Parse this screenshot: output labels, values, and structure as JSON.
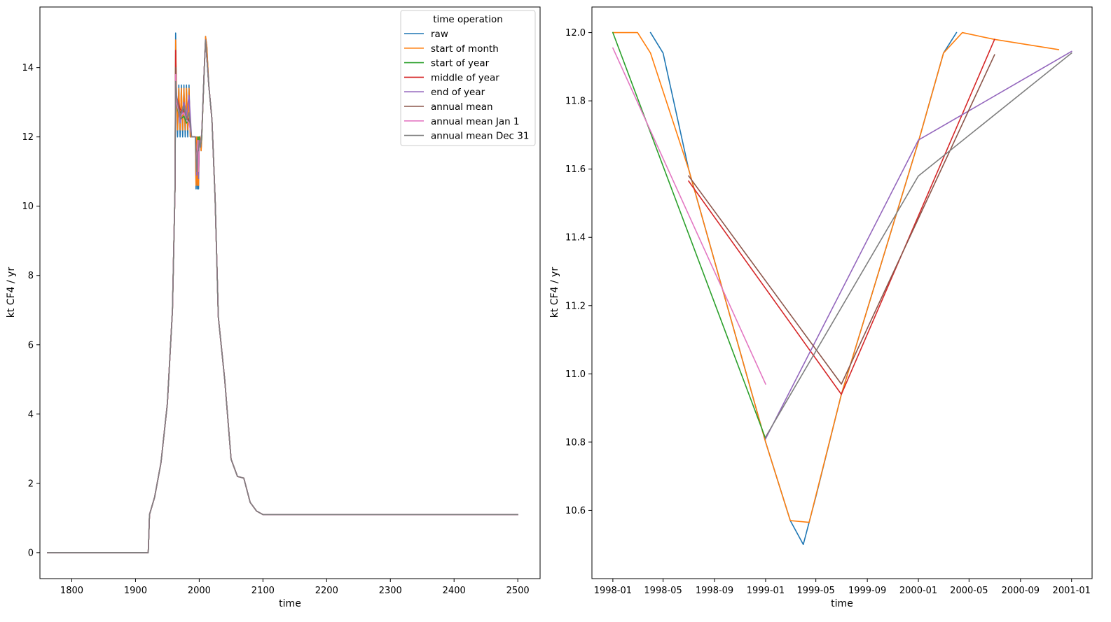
{
  "chart_data": [
    {
      "type": "line",
      "xlabel": "time",
      "ylabel": "kt CF4 / yr",
      "xlim": [
        1750,
        2535
      ],
      "ylim": [
        -0.75,
        15.75
      ],
      "xticks": [
        1800,
        1900,
        2000,
        2100,
        2200,
        2300,
        2400,
        2500
      ],
      "yticks": [
        0,
        2,
        4,
        6,
        8,
        10,
        12,
        14
      ],
      "legend": {
        "title": "time operation",
        "position": "top-right",
        "entries": [
          "raw",
          "start of month",
          "start of year",
          "middle of year",
          "end of year",
          "annual mean",
          "annual mean Jan 1",
          "annual mean Dec 31"
        ]
      },
      "series": [
        {
          "name": "raw",
          "color": "#1f77b4",
          "x": [
            1762,
            1920,
            1922,
            1930,
            1940,
            1950,
            1958,
            1962,
            1963,
            1964,
            1966,
            1968,
            1970,
            1972,
            1974,
            1976,
            1978,
            1980,
            1982,
            1984,
            1986,
            1988,
            1990,
            1992,
            1994,
            1995,
            1996,
            1997,
            1998,
            1999,
            2000,
            2001,
            2002,
            2003,
            2004,
            2006,
            2008,
            2010,
            2012,
            2015,
            2020,
            2025,
            2030,
            2040,
            2050,
            2060,
            2070,
            2080,
            2090,
            2100,
            2150,
            2200,
            2300,
            2400,
            2500
          ],
          "y": [
            0,
            0,
            1.1,
            1.6,
            2.6,
            4.3,
            7.0,
            10.5,
            15.0,
            13.5,
            12.0,
            13.5,
            12.0,
            13.5,
            12.0,
            13.5,
            12.0,
            13.5,
            12.0,
            13.5,
            12.0,
            12.0,
            12.0,
            12.0,
            12.0,
            10.5,
            12.0,
            10.5,
            12.0,
            10.5,
            12.0,
            12.0,
            11.8,
            11.6,
            12.0,
            13.0,
            14.0,
            14.9,
            14.6,
            13.5,
            12.5,
            10.2,
            6.8,
            5.0,
            2.7,
            2.2,
            2.15,
            1.45,
            1.2,
            1.1,
            1.1,
            1.1,
            1.1,
            1.1,
            1.1
          ]
        },
        {
          "name": "start of month",
          "color": "#ff7f0e",
          "x": [
            1762,
            1920,
            1922,
            1930,
            1940,
            1950,
            1958,
            1962,
            1963,
            1964,
            1966,
            1968,
            1970,
            1972,
            1974,
            1976,
            1978,
            1980,
            1982,
            1984,
            1986,
            1988,
            1990,
            1992,
            1994,
            1995,
            1996,
            1997,
            1998,
            1999,
            2000,
            2001,
            2002,
            2003,
            2004,
            2006,
            2008,
            2010,
            2012,
            2015,
            2020,
            2025,
            2030,
            2040,
            2050,
            2060,
            2070,
            2080,
            2090,
            2100,
            2150,
            2200,
            2300,
            2400,
            2500
          ],
          "y": [
            0,
            0,
            1.1,
            1.6,
            2.6,
            4.3,
            7.0,
            10.5,
            14.8,
            13.5,
            12.2,
            13.4,
            12.2,
            13.4,
            12.2,
            13.4,
            12.2,
            13.4,
            12.2,
            13.4,
            12.0,
            12.0,
            12.0,
            12.0,
            12.0,
            10.6,
            12.0,
            10.6,
            12.0,
            10.6,
            12.0,
            12.0,
            11.8,
            11.6,
            12.0,
            13.0,
            14.0,
            14.9,
            14.6,
            13.5,
            12.5,
            10.2,
            6.8,
            5.0,
            2.7,
            2.2,
            2.15,
            1.45,
            1.2,
            1.1,
            1.1,
            1.1,
            1.1,
            1.1,
            1.1
          ]
        },
        {
          "name": "start of year",
          "color": "#2ca02c",
          "x": [
            1762,
            1920,
            1922,
            1930,
            1940,
            1950,
            1958,
            1962,
            1963,
            1964,
            1970,
            1976,
            1980,
            1984,
            1988,
            1994,
            1996,
            1998,
            1999,
            2000,
            2002,
            2004,
            2008,
            2010,
            2015,
            2020,
            2025,
            2030,
            2040,
            2050,
            2060,
            2070,
            2080,
            2090,
            2100,
            2200,
            2300,
            2400,
            2500
          ],
          "y": [
            0,
            0,
            1.1,
            1.6,
            2.6,
            4.3,
            7.0,
            10.5,
            14.0,
            13.0,
            12.5,
            12.6,
            12.4,
            12.5,
            12.0,
            12.0,
            11.0,
            12.0,
            10.8,
            12.0,
            11.7,
            12.0,
            14.0,
            14.8,
            13.5,
            12.5,
            10.2,
            6.8,
            5.0,
            2.7,
            2.2,
            2.15,
            1.45,
            1.2,
            1.1,
            1.1,
            1.1,
            1.1,
            1.1
          ]
        },
        {
          "name": "middle of year",
          "color": "#d62728",
          "x": [
            1762,
            1920,
            1922,
            1930,
            1940,
            1950,
            1958,
            1962,
            1963,
            1964,
            1970,
            1976,
            1980,
            1984,
            1988,
            1994,
            1996,
            1998,
            1999,
            2000,
            2002,
            2004,
            2008,
            2010,
            2015,
            2020,
            2025,
            2030,
            2040,
            2050,
            2060,
            2070,
            2080,
            2090,
            2100,
            2200,
            2300,
            2400,
            2500
          ],
          "y": [
            0,
            0,
            1.1,
            1.6,
            2.6,
            4.3,
            7.0,
            10.5,
            14.5,
            13.2,
            12.8,
            12.7,
            12.6,
            12.5,
            12.0,
            12.0,
            11.2,
            11.6,
            10.9,
            11.9,
            11.7,
            12.1,
            14.0,
            14.8,
            13.5,
            12.5,
            10.2,
            6.8,
            5.0,
            2.7,
            2.2,
            2.15,
            1.45,
            1.2,
            1.1,
            1.1,
            1.1,
            1.1,
            1.1
          ]
        },
        {
          "name": "end of year",
          "color": "#9467bd",
          "x": [
            1762,
            1920,
            1922,
            1930,
            1940,
            1950,
            1958,
            1962,
            1963,
            1964,
            1970,
            1976,
            1980,
            1984,
            1988,
            1994,
            1996,
            1998,
            1999,
            2000,
            2002,
            2004,
            2008,
            2010,
            2015,
            2020,
            2025,
            2030,
            2040,
            2050,
            2060,
            2070,
            2080,
            2090,
            2100,
            2200,
            2300,
            2400,
            2500
          ],
          "y": [
            0,
            0,
            1.1,
            1.6,
            2.6,
            4.3,
            7.0,
            10.5,
            13.6,
            13.3,
            12.4,
            13.0,
            12.6,
            13.2,
            12.0,
            12.0,
            10.9,
            11.9,
            10.8,
            11.9,
            11.7,
            12.1,
            14.0,
            14.8,
            13.5,
            12.5,
            10.2,
            6.8,
            5.0,
            2.7,
            2.2,
            2.15,
            1.45,
            1.2,
            1.1,
            1.1,
            1.1,
            1.1,
            1.1
          ]
        },
        {
          "name": "annual mean",
          "color": "#8c564b",
          "x": [
            1762,
            1920,
            1922,
            1930,
            1940,
            1950,
            1958,
            1962,
            1963,
            1964,
            1970,
            1976,
            1980,
            1984,
            1988,
            1994,
            1996,
            1998,
            1999,
            2000,
            2002,
            2004,
            2008,
            2010,
            2015,
            2020,
            2025,
            2030,
            2040,
            2050,
            2060,
            2070,
            2080,
            2090,
            2100,
            2200,
            2300,
            2400,
            2500
          ],
          "y": [
            0,
            0,
            1.1,
            1.6,
            2.6,
            4.3,
            7.0,
            10.5,
            14.0,
            13.1,
            12.7,
            12.8,
            12.5,
            12.5,
            12.0,
            12.0,
            11.3,
            11.6,
            11.0,
            11.9,
            11.8,
            12.1,
            14.0,
            14.8,
            13.5,
            12.5,
            10.2,
            6.8,
            5.0,
            2.7,
            2.2,
            2.15,
            1.45,
            1.2,
            1.1,
            1.1,
            1.1,
            1.1,
            1.1
          ]
        },
        {
          "name": "annual mean Jan 1",
          "color": "#e377c2",
          "x": [
            1762,
            1920,
            1922,
            1930,
            1940,
            1950,
            1958,
            1962,
            1963,
            1964,
            1970,
            1976,
            1980,
            1984,
            1988,
            1994,
            1996,
            1998,
            1999,
            2000,
            2002,
            2004,
            2008,
            2010,
            2015,
            2020,
            2025,
            2030,
            2040,
            2050,
            2060,
            2070,
            2080,
            2090,
            2100,
            2200,
            2300,
            2400,
            2500
          ],
          "y": [
            0,
            0,
            1.1,
            1.6,
            2.6,
            4.3,
            7.0,
            10.5,
            13.8,
            13.0,
            12.6,
            12.7,
            12.5,
            12.4,
            12.0,
            12.0,
            11.2,
            11.9,
            11.0,
            11.9,
            11.8,
            12.1,
            14.0,
            14.8,
            13.5,
            12.5,
            10.2,
            6.8,
            5.0,
            2.7,
            2.2,
            2.15,
            1.45,
            1.2,
            1.1,
            1.1,
            1.1,
            1.1,
            1.1
          ]
        },
        {
          "name": "annual mean Dec 31",
          "color": "#7f7f7f",
          "x": [
            1762,
            1920,
            1922,
            1930,
            1940,
            1950,
            1958,
            1962,
            1963,
            1964,
            1970,
            1976,
            1980,
            1984,
            1988,
            1994,
            1996,
            1998,
            1999,
            2000,
            2002,
            2004,
            2008,
            2010,
            2015,
            2020,
            2025,
            2030,
            2040,
            2050,
            2060,
            2070,
            2080,
            2090,
            2100,
            2200,
            2300,
            2400,
            2500
          ],
          "y": [
            0,
            0,
            1.1,
            1.6,
            2.6,
            4.3,
            7.0,
            10.5,
            13.6,
            13.2,
            12.6,
            12.9,
            12.5,
            12.7,
            12.0,
            12.0,
            11.0,
            11.6,
            11.6,
            11.9,
            11.7,
            12.1,
            14.0,
            14.8,
            13.5,
            12.5,
            10.2,
            6.8,
            5.0,
            2.7,
            2.2,
            2.15,
            1.45,
            1.2,
            1.1,
            1.1,
            1.1,
            1.1,
            1.1
          ]
        }
      ]
    },
    {
      "type": "line",
      "xlabel": "time",
      "ylabel": "kt CF4 / yr",
      "x_is_date": true,
      "xlim": [
        "1997-11-12",
        "2001-02-19"
      ],
      "ylim": [
        10.4,
        12.075
      ],
      "xticks": [
        "1998-01",
        "1998-05",
        "1998-09",
        "1999-01",
        "1999-05",
        "1999-09",
        "2000-01",
        "2000-05",
        "2000-09",
        "2001-01"
      ],
      "yticks": [
        10.6,
        10.8,
        11.0,
        11.2,
        11.4,
        11.6,
        11.8,
        12.0
      ],
      "series": [
        {
          "name": "raw",
          "color": "#1f77b4",
          "x": [
            "1998-04-01",
            "1998-05-01",
            "1998-07-01",
            "1999-01-01",
            "1999-03-01",
            "1999-04-01",
            "1999-05-01",
            "1999-07-01",
            "2000-01-01",
            "2000-03-01",
            "2000-04-01"
          ],
          "y": [
            12.0,
            11.94,
            11.6,
            10.8,
            10.57,
            10.5,
            10.64,
            10.94,
            11.68,
            11.94,
            12.0
          ]
        },
        {
          "name": "start of month",
          "color": "#ff7f0e",
          "x": [
            "1998-01-01",
            "1998-03-01",
            "1998-04-01",
            "1998-07-01",
            "1999-01-01",
            "1999-03-01",
            "1999-04-15",
            "1999-07-01",
            "2000-01-01",
            "2000-03-01",
            "2000-04-15",
            "2000-07-01",
            "2000-12-01"
          ],
          "y": [
            12.0,
            12.0,
            11.94,
            11.6,
            10.8,
            10.57,
            10.565,
            10.94,
            11.68,
            11.94,
            12.0,
            11.98,
            11.95
          ]
        },
        {
          "name": "start of year",
          "color": "#2ca02c",
          "x": [
            "1998-01-01",
            "1999-01-01"
          ],
          "y": [
            12.0,
            10.81
          ]
        },
        {
          "name": "middle of year",
          "color": "#d62728",
          "x": [
            "1998-07-01",
            "1999-07-01",
            "2000-07-01"
          ],
          "y": [
            11.565,
            10.94,
            11.98
          ]
        },
        {
          "name": "end of year",
          "color": "#9467bd",
          "x": [
            "1999-01-01",
            "2000-01-01",
            "2001-01-01"
          ],
          "y": [
            10.81,
            11.685,
            11.945
          ]
        },
        {
          "name": "annual mean",
          "color": "#8c564b",
          "x": [
            "1998-07-01",
            "1999-07-01",
            "2000-07-01"
          ],
          "y": [
            11.58,
            10.97,
            11.935
          ]
        },
        {
          "name": "annual mean Jan 1",
          "color": "#e377c2",
          "x": [
            "1998-01-01",
            "1999-01-01"
          ],
          "y": [
            11.955,
            10.97
          ]
        },
        {
          "name": "annual mean Dec 31",
          "color": "#7f7f7f",
          "x": [
            "1999-01-01",
            "2000-01-01",
            "2001-01-01"
          ],
          "y": [
            10.815,
            11.58,
            11.94
          ]
        }
      ]
    }
  ]
}
